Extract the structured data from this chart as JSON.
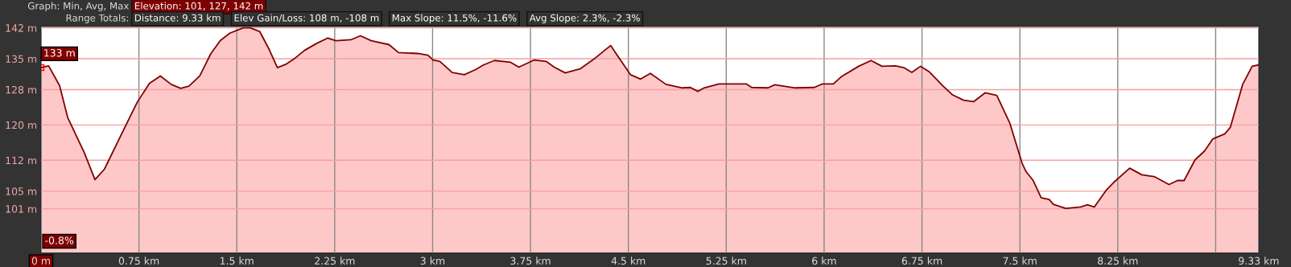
{
  "chart_data": {
    "type": "area",
    "annotations": [
      "Graph: Min, Avg, Max",
      "Elevation: 101, 127, 142 m",
      "Range Totals:",
      "Distance: 9.33 km",
      "Elev Gain/Loss: 108 m, -108 m",
      "Max Slope: 11.5%, -11.6%",
      "Avg Slope: 2.3%, -2.3%",
      "-0.8%",
      {
        "text": "133 m",
        "x": 0,
        "y": 133
      }
    ],
    "x": [
      0,
      0.058,
      0.142,
      0.204,
      0.33,
      0.413,
      0.486,
      0.611,
      0.736,
      0.83,
      0.914,
      0.997,
      1.07,
      1.133,
      1.216,
      1.3,
      1.373,
      1.446,
      1.55,
      1.602,
      1.675,
      1.748,
      1.811,
      1.873,
      1.936,
      2.019,
      2.113,
      2.197,
      2.259,
      2.374,
      2.447,
      2.53,
      2.666,
      2.739,
      2.885,
      2.964,
      3.004,
      3.056,
      3.15,
      3.243,
      3.327,
      3.39,
      3.473,
      3.598,
      3.661,
      3.776,
      3.87,
      3.932,
      4.016,
      4.13,
      4.235,
      4.364,
      4.516,
      4.594,
      4.669,
      4.788,
      4.913,
      4.975,
      5.032,
      5.08,
      5.194,
      5.403,
      5.445,
      5.57,
      5.622,
      5.778,
      5.925,
      5.987,
      6.071,
      6.13,
      6.265,
      6.359,
      6.443,
      6.547,
      6.61,
      6.672,
      6.739,
      6.808,
      6.912,
      6.985,
      7.069,
      7.147,
      7.235,
      7.323,
      7.423,
      7.517,
      7.548,
      7.6,
      7.663,
      7.725,
      7.757,
      7.851,
      7.965,
      8.017,
      8.07,
      8.164,
      8.216,
      8.341,
      8.435,
      8.529,
      8.643,
      8.706,
      8.758,
      8.842,
      8.915,
      8.977,
      9.071,
      9.113,
      9.207,
      9.28,
      9.33
    ],
    "series": [
      {
        "color": "#800000",
        "values": [
          133,
          133.4,
          128.9,
          121.7,
          113.8,
          107.6,
          110.0,
          117.6,
          125.1,
          129.4,
          131.1,
          129.2,
          128.3,
          128.8,
          131.1,
          136.1,
          139.1,
          140.8,
          142.0,
          142.0,
          141.2,
          137.1,
          133.0,
          133.7,
          134.9,
          136.9,
          138.5,
          139.7,
          139.1,
          139.3,
          140.2,
          139.1,
          138.2,
          136.4,
          136.2,
          135.8,
          134.7,
          134.4,
          131.9,
          131.4,
          132.5,
          133.6,
          134.6,
          134.2,
          133.1,
          134.7,
          134.4,
          133.1,
          131.8,
          132.7,
          134.9,
          138.0,
          131.4,
          130.4,
          131.7,
          129.2,
          128.4,
          128.5,
          127.6,
          128.4,
          129.3,
          129.3,
          128.5,
          128.4,
          129.1,
          128.4,
          128.5,
          129.3,
          129.3,
          130.9,
          133.3,
          134.6,
          133.3,
          133.4,
          133.0,
          131.9,
          133.3,
          132.0,
          128.8,
          126.8,
          125.6,
          125.3,
          127.3,
          126.7,
          120.4,
          111.3,
          109.4,
          107.5,
          103.5,
          103.1,
          102.0,
          101.1,
          101.4,
          101.9,
          101.4,
          105.3,
          106.9,
          110.2,
          108.7,
          108.3,
          106.5,
          107.4,
          107.4,
          112.1,
          114.1,
          116.8,
          118.0,
          119.5,
          129.2,
          133.3,
          133.6
        ]
      }
    ],
    "xlim": [
      0,
      9.33
    ],
    "ylim": [
      91,
      142.3
    ],
    "xticks": [
      {
        "value": 0,
        "label": "0 m"
      },
      {
        "value": 0.75,
        "label": "0.75 km"
      },
      {
        "value": 1.5,
        "label": "1.5 km"
      },
      {
        "value": 2.25,
        "label": "2.25 km"
      },
      {
        "value": 3,
        "label": "3 km"
      },
      {
        "value": 3.75,
        "label": "3.75 km"
      },
      {
        "value": 4.5,
        "label": "4.5 km"
      },
      {
        "value": 5.25,
        "label": "5.25 km"
      },
      {
        "value": 6,
        "label": "6 km"
      },
      {
        "value": 6.75,
        "label": "6.75 km"
      },
      {
        "value": 7.5,
        "label": "7.5 km"
      },
      {
        "value": 8.25,
        "label": "8.25 km"
      },
      {
        "value": 9,
        "label": null
      },
      {
        "value": 9.33,
        "label": "9.33 km"
      }
    ],
    "yticks": [
      {
        "value": 142,
        "label": "142 m"
      },
      {
        "value": 135,
        "label": "135 m"
      },
      {
        "value": 128,
        "label": "128 m"
      },
      {
        "value": 120,
        "label": "120 m"
      },
      {
        "value": 112,
        "label": "112 m"
      },
      {
        "value": 105,
        "label": "105 m"
      },
      {
        "value": 101,
        "label": "101 m"
      }
    ],
    "grid": true,
    "legend": false
  }
}
